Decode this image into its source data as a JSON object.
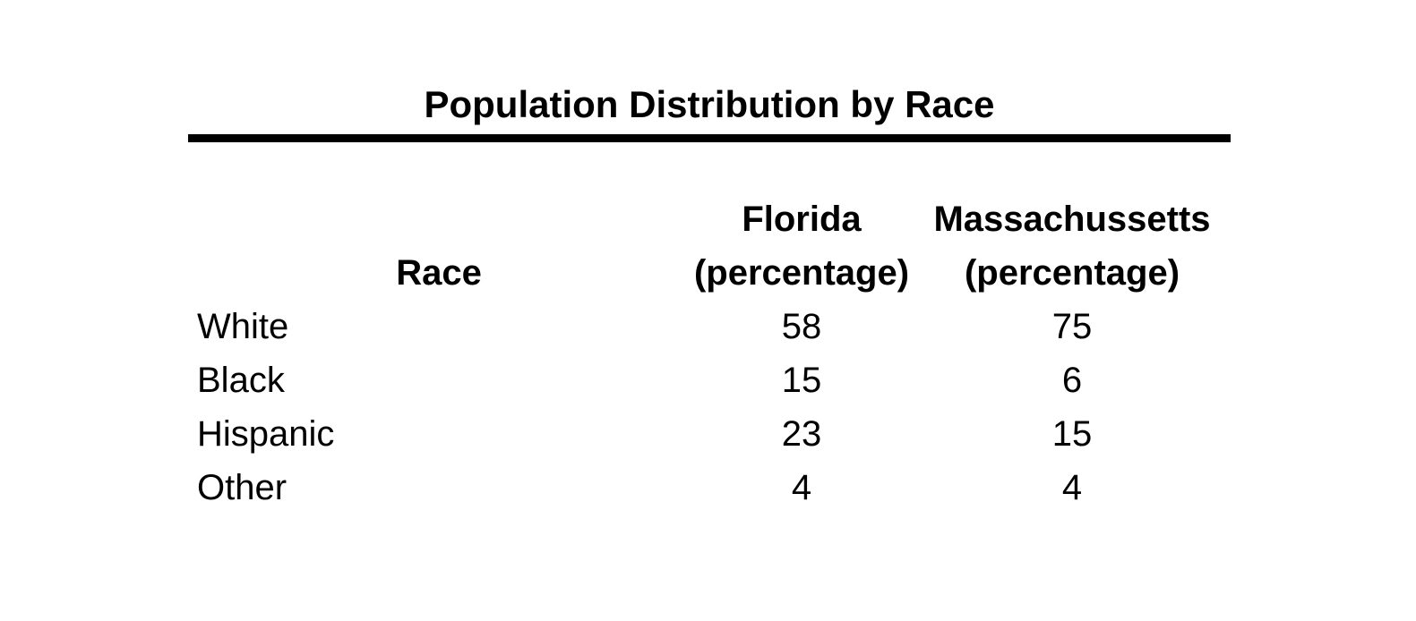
{
  "table": {
    "title": "Population Distribution by Race",
    "columns": [
      {
        "label": "Race",
        "sublabel": ""
      },
      {
        "label": "Florida",
        "sublabel": "(percentage)"
      },
      {
        "label": "Massachussetts",
        "sublabel": "(percentage)"
      }
    ],
    "rows": [
      {
        "race": "White",
        "florida": "58",
        "massachussetts": "75"
      },
      {
        "race": "Black",
        "florida": "15",
        "massachussetts": "6"
      },
      {
        "race": "Hispanic",
        "florida": "23",
        "massachussetts": "15"
      },
      {
        "race": "Other",
        "florida": "4",
        "massachussetts": "4"
      }
    ]
  },
  "chart_data": {
    "type": "table",
    "title": "Population Distribution by Race",
    "categories": [
      "White",
      "Black",
      "Hispanic",
      "Other"
    ],
    "series": [
      {
        "name": "Florida (percentage)",
        "values": [
          58,
          15,
          23,
          4
        ]
      },
      {
        "name": "Massachussetts (percentage)",
        "values": [
          75,
          6,
          15,
          4
        ]
      }
    ]
  },
  "colors": {
    "text": "#000000",
    "background": "#ffffff",
    "rule": "#000000"
  }
}
